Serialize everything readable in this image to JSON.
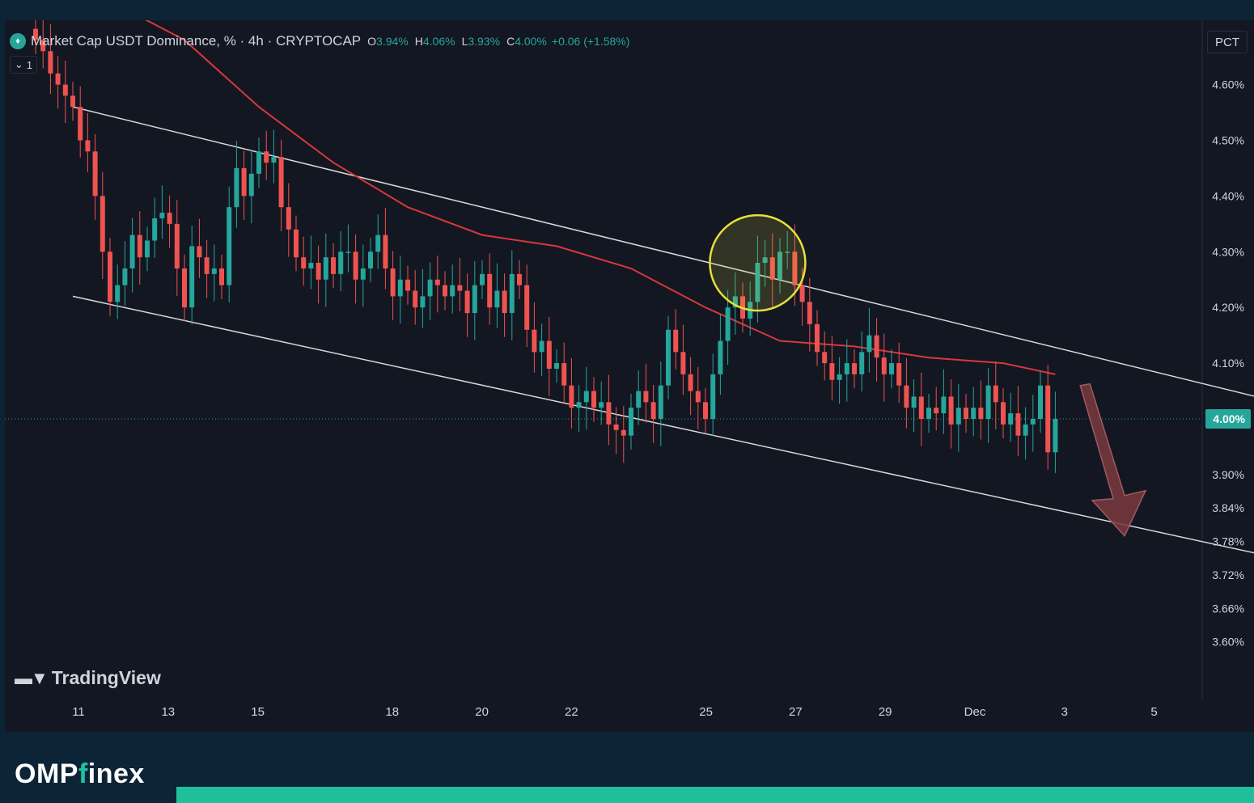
{
  "header": {
    "symbol_title": "Market Cap USDT Dominance, % · 4h · CRYPTOCAP",
    "ohlc": [
      {
        "key": "O",
        "value": "3.94%"
      },
      {
        "key": "H",
        "value": "4.06%"
      },
      {
        "key": "L",
        "value": "3.93%"
      },
      {
        "key": "C",
        "value": "4.00%"
      }
    ],
    "change": "+0.06 (+1.58%)",
    "collapse_label": "1",
    "scale_button": "PCT"
  },
  "watermark": "TradingView",
  "footer": {
    "brand_main": "OMP",
    "brand_accent": "f",
    "brand_rest": "inex"
  },
  "colors": {
    "up": "#26a69a",
    "down": "#ef5350",
    "ma": "#d7383b",
    "channel": "#d8d8d8",
    "highlight": "#e6e03a",
    "arrow": "#7a3a3e",
    "accent": "#1fbf9b"
  },
  "chart_data": {
    "type": "candlestick",
    "title": "Market Cap USDT Dominance, % · 4h · CRYPTOCAP",
    "y_unit": "%",
    "ylim": [
      3.57,
      4.68
    ],
    "y_ticks": [
      "4.60%",
      "4.50%",
      "4.40%",
      "4.30%",
      "4.20%",
      "4.10%",
      "4.00%",
      "3.90%",
      "3.84%",
      "3.78%",
      "3.72%",
      "3.66%",
      "3.60%"
    ],
    "y_tick_values": [
      4.6,
      4.5,
      4.4,
      4.3,
      4.2,
      4.1,
      4.0,
      3.9,
      3.84,
      3.78,
      3.72,
      3.66,
      3.6
    ],
    "x_ticks": [
      "11",
      "13",
      "15",
      "18",
      "20",
      "22",
      "25",
      "27",
      "29",
      "Dec",
      "3",
      "5"
    ],
    "x_tick_values": [
      0,
      2,
      4,
      7,
      9,
      11,
      14,
      16,
      18,
      20,
      22,
      24
    ],
    "last_price_label": "4.00%",
    "last_price": 4.0,
    "closes": [
      4.68,
      4.66,
      4.62,
      4.6,
      4.58,
      4.56,
      4.5,
      4.48,
      4.4,
      4.3,
      4.21,
      4.24,
      4.27,
      4.33,
      4.29,
      4.32,
      4.36,
      4.37,
      4.35,
      4.27,
      4.2,
      4.31,
      4.29,
      4.26,
      4.27,
      4.24,
      4.38,
      4.45,
      4.4,
      4.44,
      4.48,
      4.46,
      4.47,
      4.38,
      4.34,
      4.29,
      4.27,
      4.28,
      4.25,
      4.29,
      4.26,
      4.3,
      4.3,
      4.25,
      4.27,
      4.3,
      4.33,
      4.27,
      4.22,
      4.25,
      4.23,
      4.2,
      4.22,
      4.25,
      4.24,
      4.22,
      4.24,
      4.23,
      4.19,
      4.24,
      4.26,
      4.2,
      4.23,
      4.19,
      4.26,
      4.24,
      4.16,
      4.12,
      4.14,
      4.09,
      4.1,
      4.06,
      4.02,
      4.03,
      4.05,
      4.02,
      4.03,
      3.99,
      3.98,
      3.97,
      4.02,
      4.05,
      4.03,
      4.0,
      4.06,
      4.16,
      4.12,
      4.08,
      4.05,
      4.03,
      4.0,
      4.08,
      4.14,
      4.2,
      4.22,
      4.18,
      4.21,
      4.28,
      4.29,
      4.25,
      4.3,
      4.3,
      4.24,
      4.21,
      4.17,
      4.12,
      4.1,
      4.07,
      4.08,
      4.1,
      4.08,
      4.12,
      4.15,
      4.11,
      4.08,
      4.1,
      4.06,
      4.02,
      4.04,
      4.0,
      4.02,
      4.01,
      4.04,
      3.99,
      4.02,
      4.0,
      4.02,
      4.0,
      4.06,
      4.03,
      3.99,
      4.01,
      3.97,
      3.99,
      4.0,
      4.06,
      3.94,
      4.0
    ],
    "moving_average": [
      {
        "i": 0,
        "v": 4.82
      },
      {
        "i": 20,
        "v": 4.68
      },
      {
        "i": 30,
        "v": 4.56
      },
      {
        "i": 40,
        "v": 4.46
      },
      {
        "i": 50,
        "v": 4.38
      },
      {
        "i": 60,
        "v": 4.33
      },
      {
        "i": 70,
        "v": 4.31
      },
      {
        "i": 80,
        "v": 4.27
      },
      {
        "i": 90,
        "v": 4.2
      },
      {
        "i": 100,
        "v": 4.14
      },
      {
        "i": 110,
        "v": 4.13
      },
      {
        "i": 120,
        "v": 4.11
      },
      {
        "i": 130,
        "v": 4.1
      },
      {
        "i": 137,
        "v": 4.08
      }
    ],
    "channel_upper": [
      {
        "i": 5,
        "v": 4.56
      },
      {
        "i": 167,
        "v": 4.03
      }
    ],
    "channel_lower": [
      {
        "i": 5,
        "v": 4.22
      },
      {
        "i": 167,
        "v": 3.75
      }
    ],
    "annotations": [
      {
        "type": "circle",
        "label": "",
        "center_i": 97,
        "center_v": 4.28
      },
      {
        "type": "arrow-down",
        "label": "",
        "from_i": 141,
        "from_v": 4.06,
        "to_i": 145,
        "to_v": 3.79
      }
    ],
    "grid": false
  }
}
